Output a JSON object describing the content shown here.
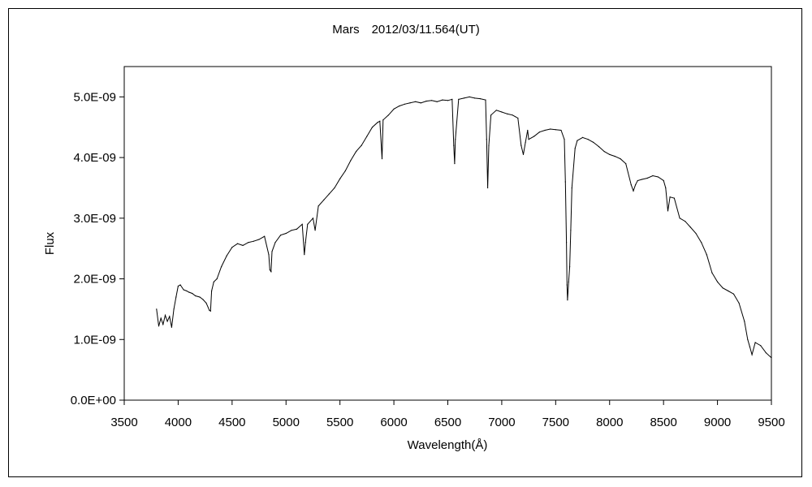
{
  "chart_data": {
    "type": "line",
    "title": "Mars　2012/03/11.564(UT)",
    "xlabel": "Wavelength(Å)",
    "ylabel": "Flux",
    "xlim": [
      3500,
      9500
    ],
    "ylim": [
      0,
      5.5e-09
    ],
    "x_ticks": [
      "3500",
      "4000",
      "4500",
      "5000",
      "5500",
      "6000",
      "6500",
      "7000",
      "7500",
      "8000",
      "8500",
      "9000",
      "9500"
    ],
    "y_ticks": [
      "0.0E+00",
      "1.0E-09",
      "2.0E-09",
      "3.0E-09",
      "4.0E-09",
      "5.0E-09"
    ],
    "grid": false,
    "legend": "none",
    "line_color": "#000000",
    "series": [
      {
        "x": [
          3800,
          3820,
          3840,
          3860,
          3880,
          3900,
          3920,
          3940,
          3960,
          3980,
          4000,
          4020,
          4050,
          4080,
          4100,
          4130,
          4160,
          4200,
          4230,
          4260,
          4290,
          4300,
          4310,
          4330,
          4360,
          4400,
          4450,
          4500,
          4550,
          4600,
          4650,
          4700,
          4750,
          4800,
          4840,
          4850,
          4861,
          4870,
          4900,
          4950,
          5000,
          5050,
          5100,
          5150,
          5170,
          5180,
          5200,
          5250,
          5270,
          5300,
          5350,
          5400,
          5450,
          5500,
          5550,
          5600,
          5650,
          5700,
          5750,
          5800,
          5850,
          5870,
          5890,
          5900,
          5950,
          6000,
          6050,
          6100,
          6150,
          6200,
          6250,
          6300,
          6350,
          6400,
          6450,
          6500,
          6540,
          6555,
          6563,
          6570,
          6600,
          6650,
          6700,
          6750,
          6800,
          6850,
          6860,
          6870,
          6880,
          6900,
          6950,
          7000,
          7050,
          7100,
          7150,
          7180,
          7200,
          7220,
          7240,
          7250,
          7300,
          7350,
          7400,
          7450,
          7500,
          7550,
          7580,
          7590,
          7600,
          7605,
          7610,
          7620,
          7630,
          7640,
          7650,
          7680,
          7700,
          7750,
          7800,
          7850,
          7900,
          7950,
          8000,
          8050,
          8100,
          8150,
          8200,
          8220,
          8240,
          8260,
          8300,
          8350,
          8400,
          8450,
          8500,
          8520,
          8540,
          8560,
          8600,
          8650,
          8700,
          8750,
          8800,
          8850,
          8900,
          8950,
          9000,
          9050,
          9100,
          9150,
          9200,
          9250,
          9280,
          9300,
          9320,
          9350,
          9400,
          9450,
          9500
        ],
        "y": [
          1.5e-09,
          1.22e-09,
          1.35e-09,
          1.25e-09,
          1.4e-09,
          1.3e-09,
          1.38e-09,
          1.2e-09,
          1.5e-09,
          1.7e-09,
          1.88e-09,
          1.9e-09,
          1.82e-09,
          1.8e-09,
          1.78e-09,
          1.76e-09,
          1.72e-09,
          1.7e-09,
          1.66e-09,
          1.6e-09,
          1.48e-09,
          1.47e-09,
          1.8e-09,
          1.95e-09,
          2e-09,
          2.2e-09,
          2.38e-09,
          2.52e-09,
          2.58e-09,
          2.55e-09,
          2.6e-09,
          2.62e-09,
          2.65e-09,
          2.7e-09,
          2.4e-09,
          2.15e-09,
          2.12e-09,
          2.45e-09,
          2.6e-09,
          2.72e-09,
          2.75e-09,
          2.8e-09,
          2.82e-09,
          2.9e-09,
          2.4e-09,
          2.6e-09,
          2.9e-09,
          3e-09,
          2.8e-09,
          3.2e-09,
          3.3e-09,
          3.4e-09,
          3.5e-09,
          3.65e-09,
          3.78e-09,
          3.95e-09,
          4.1e-09,
          4.2e-09,
          4.35e-09,
          4.5e-09,
          4.58e-09,
          4.6e-09,
          3.98e-09,
          4.62e-09,
          4.7e-09,
          4.8e-09,
          4.85e-09,
          4.88e-09,
          4.9e-09,
          4.92e-09,
          4.9e-09,
          4.93e-09,
          4.94e-09,
          4.92e-09,
          4.95e-09,
          4.94e-09,
          4.96e-09,
          4.2e-09,
          3.9e-09,
          4.3e-09,
          4.96e-09,
          4.98e-09,
          5e-09,
          4.98e-09,
          4.97e-09,
          4.95e-09,
          4.3e-09,
          3.5e-09,
          4.2e-09,
          4.7e-09,
          4.78e-09,
          4.75e-09,
          4.72e-09,
          4.7e-09,
          4.65e-09,
          4.2e-09,
          4.05e-09,
          4.25e-09,
          4.45e-09,
          4.3e-09,
          4.35e-09,
          4.42e-09,
          4.45e-09,
          4.47e-09,
          4.46e-09,
          4.45e-09,
          4.3e-09,
          3.6e-09,
          2.6e-09,
          1.9e-09,
          1.65e-09,
          1.95e-09,
          2.2e-09,
          2.8e-09,
          3.5e-09,
          4.15e-09,
          4.28e-09,
          4.33e-09,
          4.3e-09,
          4.25e-09,
          4.18e-09,
          4.1e-09,
          4.05e-09,
          4.02e-09,
          3.98e-09,
          3.9e-09,
          3.55e-09,
          3.45e-09,
          3.55e-09,
          3.62e-09,
          3.64e-09,
          3.66e-09,
          3.7e-09,
          3.68e-09,
          3.62e-09,
          3.5e-09,
          3.12e-09,
          3.35e-09,
          3.33e-09,
          3e-09,
          2.95e-09,
          2.85e-09,
          2.75e-09,
          2.6e-09,
          2.4e-09,
          2.1e-09,
          1.95e-09,
          1.85e-09,
          1.8e-09,
          1.75e-09,
          1.6e-09,
          1.3e-09,
          1e-09,
          8.8e-10,
          7.5e-10,
          9.5e-10,
          9e-10,
          7.8e-10,
          7e-10
        ]
      }
    ]
  }
}
